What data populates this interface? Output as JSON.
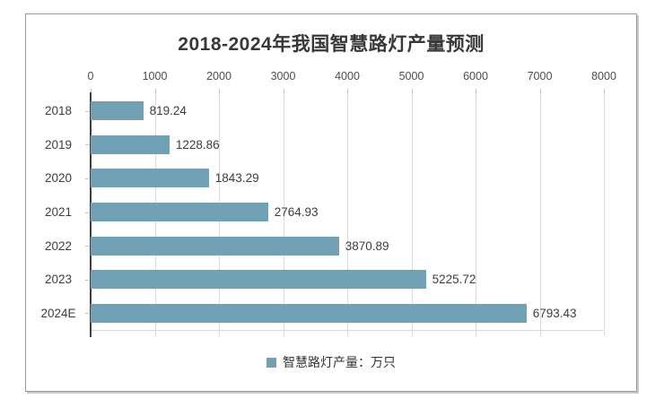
{
  "chart_data": {
    "type": "bar",
    "orientation": "horizontal",
    "title": "2018-2024年我国智慧路灯产量预测",
    "categories": [
      "2018",
      "2019",
      "2020",
      "2021",
      "2022",
      "2023",
      "2024E"
    ],
    "values": [
      819.24,
      1228.86,
      1843.29,
      2764.93,
      3870.89,
      5225.72,
      6793.43
    ],
    "value_labels": [
      "819.24",
      "1228.86",
      "1843.29",
      "2764.93",
      "3870.89",
      "5225.72",
      "6793.43"
    ],
    "series_name": "智慧路灯产量：万只",
    "xlabel": "",
    "ylabel": "",
    "xlim": [
      0,
      8000
    ],
    "x_ticks": [
      0,
      1000,
      2000,
      3000,
      4000,
      5000,
      6000,
      7000,
      8000
    ],
    "x_tick_labels": [
      "0",
      "1000",
      "2000",
      "3000",
      "4000",
      "5000",
      "6000",
      "7000",
      "8000"
    ],
    "grid": "vertical",
    "value_axis_position": "top",
    "legend_position": "bottom"
  },
  "legend": {
    "label": "智慧路灯产量：万只",
    "marker_color": "#71a1b5"
  },
  "colors": {
    "bar": "#71a1b5",
    "gridline": "#dcdcdc",
    "category_axis": "#404040",
    "frame_border": "#9a9a9a",
    "title_text": "#383838",
    "label_text": "#3d3d3d"
  }
}
